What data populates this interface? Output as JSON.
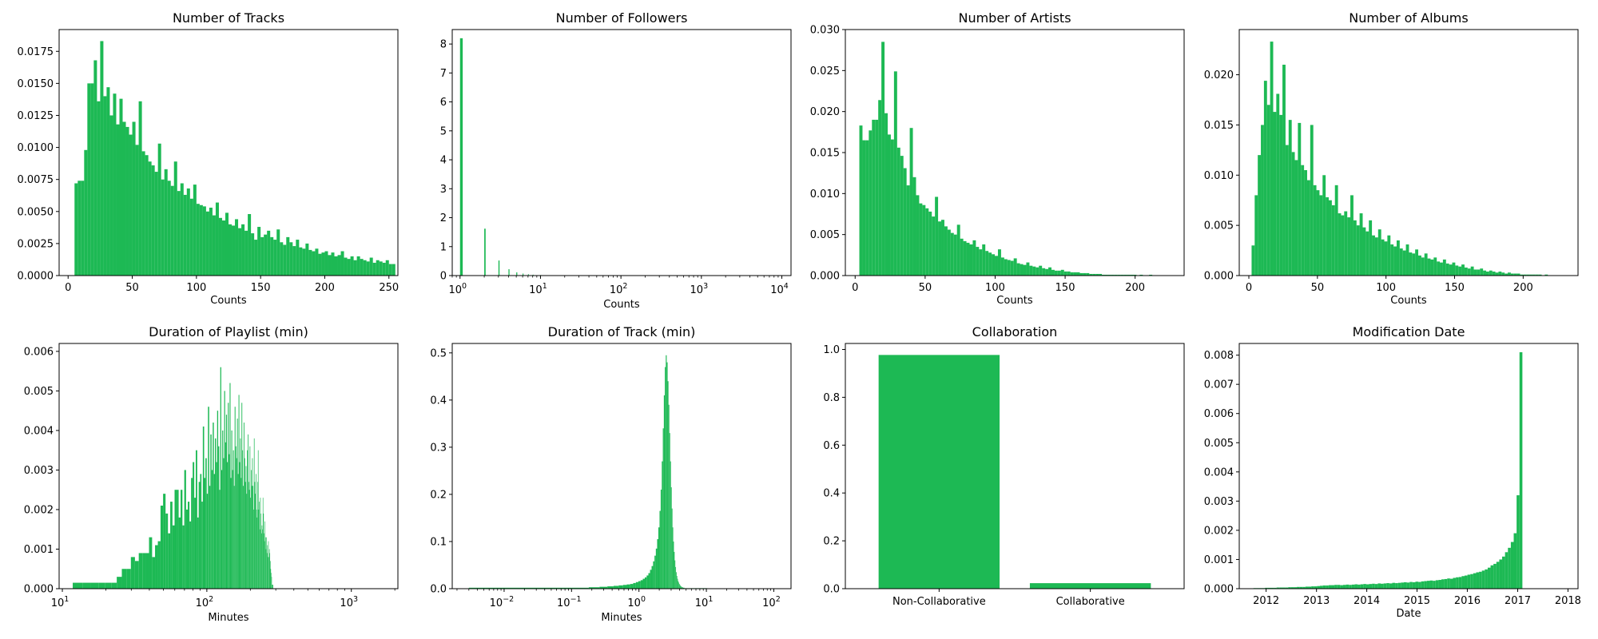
{
  "bar_color": "#1db954",
  "chart_data": [
    {
      "type": "bar",
      "title": "Number of Tracks",
      "xlabel": "Counts",
      "xscale": "linear",
      "xlim": [
        -7,
        257
      ],
      "ylim": [
        0,
        0.0192
      ],
      "xticks": [
        0,
        50,
        100,
        150,
        200,
        250
      ],
      "yticks": [
        0,
        0.0025,
        0.005,
        0.0075,
        0.01,
        0.0125,
        0.015,
        0.0175
      ],
      "ytick_labels": [
        "0.0000",
        "0.0025",
        "0.0050",
        "0.0075",
        "0.0100",
        "0.0125",
        "0.0150",
        "0.0175"
      ],
      "bins": {
        "start": 5,
        "width": 2.5
      },
      "values": [
        0.0072,
        0.0074,
        0.0074,
        0.0098,
        0.015,
        0.015,
        0.0168,
        0.0136,
        0.0183,
        0.014,
        0.0147,
        0.0125,
        0.0142,
        0.0118,
        0.0138,
        0.012,
        0.0116,
        0.011,
        0.012,
        0.0102,
        0.0136,
        0.0097,
        0.0094,
        0.0089,
        0.0086,
        0.0081,
        0.0103,
        0.0075,
        0.0083,
        0.0074,
        0.007,
        0.0089,
        0.0066,
        0.0072,
        0.0063,
        0.0068,
        0.006,
        0.0071,
        0.0056,
        0.0055,
        0.0054,
        0.005,
        0.0053,
        0.0047,
        0.0057,
        0.0045,
        0.0043,
        0.0049,
        0.004,
        0.0039,
        0.0044,
        0.0037,
        0.004,
        0.0035,
        0.0048,
        0.0033,
        0.0028,
        0.0038,
        0.003,
        0.0032,
        0.0035,
        0.003,
        0.0028,
        0.0036,
        0.0026,
        0.0024,
        0.003,
        0.0026,
        0.0023,
        0.0028,
        0.0022,
        0.0021,
        0.0025,
        0.002,
        0.0019,
        0.0021,
        0.0017,
        0.0018,
        0.0019,
        0.0016,
        0.0018,
        0.0015,
        0.0016,
        0.0019,
        0.0014,
        0.0013,
        0.0015,
        0.0012,
        0.0015,
        0.0013,
        0.0012,
        0.0011,
        0.0014,
        0.001,
        0.0012,
        0.0011,
        0.001,
        0.0012,
        0.0009,
        0.0009
      ]
    },
    {
      "type": "bar",
      "title": "Number of Followers",
      "xlabel": "Counts",
      "xscale": "log",
      "xlim": [
        0.8,
        13000
      ],
      "ylim": [
        0,
        8.5
      ],
      "xticks": [
        1,
        10,
        100,
        1000,
        10000
      ],
      "xtick_labels": [
        [
          "10",
          "0"
        ],
        [
          "10",
          "1"
        ],
        [
          "10",
          "2"
        ],
        [
          "10",
          "3"
        ],
        [
          "10",
          "4"
        ]
      ],
      "yticks": [
        0,
        1,
        2,
        3,
        4,
        5,
        6,
        7,
        8
      ],
      "ytick_labels": [
        "0",
        "1",
        "2",
        "3",
        "4",
        "5",
        "6",
        "7",
        "8"
      ],
      "bar_x": [
        1,
        2,
        3,
        4,
        5,
        6,
        7,
        8,
        10,
        12
      ],
      "bar_widths": [
        0.08,
        0.08,
        0.1,
        0.12,
        0.15,
        0.15,
        0.15,
        0.2,
        0.2,
        0.3
      ],
      "values": [
        8.2,
        1.62,
        0.52,
        0.22,
        0.11,
        0.07,
        0.05,
        0.03,
        0.02,
        0.01
      ]
    },
    {
      "type": "bar",
      "title": "Number of Artists",
      "xlabel": "Counts",
      "xscale": "linear",
      "xlim": [
        -7,
        235
      ],
      "ylim": [
        0,
        0.03
      ],
      "xticks": [
        0,
        50,
        100,
        150,
        200
      ],
      "yticks": [
        0,
        0.005,
        0.01,
        0.015,
        0.02,
        0.025,
        0.03
      ],
      "ytick_labels": [
        "0.000",
        "0.005",
        "0.010",
        "0.015",
        "0.020",
        "0.025",
        "0.030"
      ],
      "bins": {
        "start": 3,
        "width": 2.25
      },
      "values": [
        0.0183,
        0.0165,
        0.0165,
        0.0177,
        0.019,
        0.019,
        0.0214,
        0.0285,
        0.0198,
        0.0172,
        0.0166,
        0.0249,
        0.0156,
        0.0146,
        0.0131,
        0.011,
        0.018,
        0.012,
        0.0098,
        0.0088,
        0.0086,
        0.0082,
        0.0078,
        0.0072,
        0.0096,
        0.0066,
        0.0068,
        0.006,
        0.0056,
        0.0052,
        0.005,
        0.0062,
        0.0045,
        0.0042,
        0.004,
        0.0038,
        0.0043,
        0.0035,
        0.0032,
        0.0038,
        0.003,
        0.0028,
        0.0026,
        0.0024,
        0.0032,
        0.0022,
        0.002,
        0.0019,
        0.0018,
        0.0021,
        0.0015,
        0.0014,
        0.0013,
        0.0016,
        0.0012,
        0.0011,
        0.001,
        0.0012,
        0.0009,
        0.0008,
        0.001,
        0.0007,
        0.0006,
        0.0006,
        0.0007,
        0.0005,
        0.0005,
        0.0004,
        0.0004,
        0.0004,
        0.0003,
        0.0003,
        0.0003,
        0.0002,
        0.0002,
        0.0002,
        0.0002,
        0.0001,
        0.0001,
        0.0001,
        0.0001,
        0.0001,
        0.0001,
        0.0001,
        0.0001,
        0.0001,
        0.0001,
        0.0001,
        0,
        0.0001,
        0,
        0,
        0.0001,
        0,
        0,
        0,
        0,
        0,
        0,
        0
      ]
    },
    {
      "type": "bar",
      "title": "Number of Albums",
      "xlabel": "Counts",
      "xscale": "linear",
      "xlim": [
        -7,
        240
      ],
      "ylim": [
        0,
        0.0245
      ],
      "xticks": [
        0,
        50,
        100,
        150,
        200
      ],
      "yticks": [
        0,
        0.005,
        0.01,
        0.015,
        0.02
      ],
      "ytick_labels": [
        "0.000",
        "0.005",
        "0.010",
        "0.015",
        "0.020"
      ],
      "bins": {
        "start": 2,
        "width": 2.25
      },
      "values": [
        0.003,
        0.008,
        0.012,
        0.015,
        0.0194,
        0.017,
        0.0233,
        0.0163,
        0.0181,
        0.016,
        0.021,
        0.013,
        0.0155,
        0.0123,
        0.0115,
        0.0152,
        0.011,
        0.0105,
        0.0095,
        0.015,
        0.009,
        0.0085,
        0.008,
        0.01,
        0.0078,
        0.0075,
        0.007,
        0.009,
        0.0062,
        0.006,
        0.0064,
        0.0058,
        0.008,
        0.0055,
        0.005,
        0.0062,
        0.0048,
        0.0044,
        0.0055,
        0.004,
        0.0038,
        0.0046,
        0.0036,
        0.0034,
        0.004,
        0.0031,
        0.0029,
        0.0035,
        0.0027,
        0.0025,
        0.0031,
        0.0023,
        0.0022,
        0.0026,
        0.002,
        0.0018,
        0.0022,
        0.0017,
        0.0016,
        0.0018,
        0.0014,
        0.0013,
        0.0016,
        0.0012,
        0.0011,
        0.0013,
        0.001,
        0.0009,
        0.0011,
        0.0008,
        0.0007,
        0.0009,
        0.0006,
        0.0006,
        0.0007,
        0.0005,
        0.0004,
        0.0005,
        0.0004,
        0.0003,
        0.0004,
        0.0003,
        0.0002,
        0.0003,
        0.0002,
        0.0002,
        0.0002,
        0.0001,
        0.0001,
        0.0001,
        0.0001,
        0.0001,
        0.0001,
        0.0001,
        0,
        0.0001,
        0,
        0,
        0,
        0
      ]
    },
    {
      "type": "bar",
      "title": "Duration of Playlist (min)",
      "xlabel": "Minutes",
      "xscale": "log",
      "xlim": [
        9.5,
        2100
      ],
      "ylim": [
        0,
        0.0062
      ],
      "xticks": [
        10,
        100,
        1000
      ],
      "xtick_labels": [
        [
          "10",
          "1"
        ],
        [
          "10",
          "2"
        ],
        [
          "10",
          "3"
        ]
      ],
      "yticks": [
        0,
        0.001,
        0.002,
        0.003,
        0.004,
        0.005,
        0.006
      ],
      "ytick_labels": [
        "0.000",
        "0.001",
        "0.002",
        "0.003",
        "0.004",
        "0.005",
        "0.006"
      ],
      "bins": {
        "start": 11.8,
        "width": 2.0
      },
      "values": [
        0.00015,
        0.00015,
        0.00015,
        0.00015,
        0.00015,
        0.00015,
        0.0003,
        0.0005,
        0.0005,
        0.0008,
        0.0007,
        0.0009,
        0.0009,
        0.0009,
        0.0013,
        0.0008,
        0.0011,
        0.0012,
        0.0021,
        0.0024,
        0.0019,
        0.0014,
        0.0022,
        0.0016,
        0.0025,
        0.0025,
        0.0018,
        0.0025,
        0.0016,
        0.003,
        0.002,
        0.0022,
        0.0017,
        0.0028,
        0.0032,
        0.0023,
        0.0035,
        0.0018,
        0.0027,
        0.0029,
        0.0022,
        0.0041,
        0.0028,
        0.0033,
        0.0024,
        0.0046,
        0.0026,
        0.0039,
        0.003,
        0.0042,
        0.0029,
        0.0038,
        0.0032,
        0.0045,
        0.0036,
        0.0025,
        0.0056,
        0.003,
        0.004,
        0.0033,
        0.005,
        0.0037,
        0.0044,
        0.0032,
        0.0047,
        0.0034,
        0.0052,
        0.0028,
        0.004,
        0.003,
        0.0035,
        0.0026,
        0.0046,
        0.0036,
        0.0033,
        0.0043,
        0.0029,
        0.0049,
        0.0032,
        0.0038,
        0.0028,
        0.0047,
        0.0035,
        0.0026,
        0.0042,
        0.0033,
        0.0027,
        0.0031,
        0.0024,
        0.0035,
        0.0039,
        0.0027,
        0.0025,
        0.0036,
        0.0023,
        0.003,
        0.0026,
        0.0033,
        0.0026,
        0.002,
        0.0038,
        0.0027,
        0.0024,
        0.0029,
        0.002,
        0.0018,
        0.0027,
        0.0035,
        0.002,
        0.0022,
        0.0015,
        0.0023,
        0.0019,
        0.0014,
        0.0016,
        0.0015,
        0.0023,
        0.0019,
        0.0014,
        0.0012,
        0.0017,
        0.0013,
        0.001,
        0.0013,
        0.0009,
        0.0011,
        0.0008,
        0.0012,
        0.0008,
        0.001,
        0.0009,
        0.0007,
        0.0005,
        0.0004,
        0.0003,
        0.0001,
        0.0001,
        0.0001,
        0,
        0,
        0,
        0,
        0,
        0,
        0,
        0,
        0,
        0,
        0
      ]
    },
    {
      "type": "bar",
      "title": "Duration of Track (min)",
      "xlabel": "Minutes",
      "xscale": "log",
      "xlim": [
        0.0017,
        180
      ],
      "ylim": [
        0,
        0.52
      ],
      "xticks": [
        0.01,
        0.1,
        1,
        10,
        100
      ],
      "xtick_labels": [
        [
          "10",
          "−2"
        ],
        [
          "10",
          "−1"
        ],
        [
          "10",
          "0"
        ],
        [
          "10",
          "1"
        ],
        [
          "10",
          "2"
        ]
      ],
      "yticks": [
        0,
        0.1,
        0.2,
        0.3,
        0.4,
        0.5
      ],
      "ytick_labels": [
        "0.0",
        "0.1",
        "0.2",
        "0.3",
        "0.4",
        "0.5"
      ],
      "bins": {
        "start": 0.1,
        "width": 0.08
      },
      "values": [
        0.002,
        0.003,
        0.004,
        0.005,
        0.006,
        0.007,
        0.008,
        0.009,
        0.01,
        0.012,
        0.014,
        0.016,
        0.018,
        0.021,
        0.024,
        0.028,
        0.033,
        0.04,
        0.048,
        0.058,
        0.07,
        0.085,
        0.105,
        0.13,
        0.165,
        0.21,
        0.27,
        0.34,
        0.41,
        0.47,
        0.495,
        0.48,
        0.44,
        0.39,
        0.33,
        0.27,
        0.215,
        0.17,
        0.13,
        0.1,
        0.078,
        0.06,
        0.046,
        0.035,
        0.027,
        0.021,
        0.016,
        0.013,
        0.01,
        0.008,
        0.006,
        0.005,
        0.004,
        0.003,
        0.003,
        0.002,
        0.002,
        0.002,
        0.001,
        0.001,
        0.001,
        0.001,
        0.001,
        0.001,
        0.001,
        0.001,
        0.001,
        0.001,
        0.001,
        0.001,
        0.001,
        0.001,
        0.001,
        0.001,
        0.001,
        0.001,
        0.001,
        0.001,
        0.001,
        0.001,
        0.001,
        0.001,
        0.001,
        0.001,
        0.001,
        0.001,
        0.001,
        0.001,
        0.001,
        0.001,
        0.001,
        0.001,
        0.001,
        0.001,
        0.001,
        0.001,
        0.001,
        0.001,
        0.001,
        0.001,
        0.001,
        0.001,
        0.001,
        0.001,
        0.001,
        0.001,
        0.001,
        0.001,
        0.001,
        0.001,
        0.001,
        0.001,
        0.001,
        0.001,
        0.001,
        0.001,
        0.001,
        0.001,
        0.001,
        0.001,
        0.001,
        0.001,
        0.001,
        0.001,
        0.001
      ],
      "low_tail": {
        "from": 0.003,
        "to": 0.1,
        "value": 0.002
      }
    },
    {
      "type": "bar",
      "title": "Collaboration",
      "xlabel": "",
      "xscale": "category",
      "categories": [
        "Non-Collaborative",
        "Collaborative"
      ],
      "values": [
        0.977,
        0.023
      ],
      "xlim": [
        -0.62,
        1.62
      ],
      "ylim": [
        0,
        1.025
      ],
      "yticks": [
        0,
        0.2,
        0.4,
        0.6,
        0.8,
        1.0
      ],
      "ytick_labels": [
        "0.0",
        "0.2",
        "0.4",
        "0.6",
        "0.8",
        "1.0"
      ],
      "bar_width": 0.8
    },
    {
      "type": "bar",
      "title": "Modification Date",
      "xlabel": "Date",
      "xscale": "date",
      "xlim": [
        "2011-06-20",
        "2018-03-15"
      ],
      "ylim": [
        0,
        0.0084
      ],
      "xticks": [
        "2012",
        "2013",
        "2014",
        "2015",
        "2016",
        "2017",
        "2018"
      ],
      "yticks": [
        0,
        0.001,
        0.002,
        0.003,
        0.004,
        0.005,
        0.006,
        0.007,
        0.008
      ],
      "ytick_labels": [
        "0.000",
        "0.001",
        "0.002",
        "0.003",
        "0.004",
        "0.005",
        "0.006",
        "0.007",
        "0.008"
      ],
      "bins": {
        "start": "2011-10-01",
        "width_days": 21
      },
      "values": [
        2e-05,
        2e-05,
        2e-05,
        2e-05,
        3e-05,
        3e-05,
        3e-05,
        3e-05,
        4e-05,
        4e-05,
        4e-05,
        4e-05,
        5e-05,
        5e-05,
        5e-05,
        6e-05,
        6e-05,
        6e-05,
        7e-05,
        7e-05,
        8e-05,
        8e-05,
        9e-05,
        0.0001,
        0.00011,
        0.00011,
        0.00012,
        0.00012,
        0.00013,
        0.00013,
        0.00012,
        0.00013,
        0.00014,
        0.00013,
        0.00014,
        0.00015,
        0.00014,
        0.00015,
        0.00016,
        0.00015,
        0.00016,
        0.00017,
        0.00016,
        0.00018,
        0.00017,
        0.00018,
        0.00019,
        0.00018,
        0.0002,
        0.00019,
        0.0002,
        0.00021,
        0.00022,
        0.00021,
        0.00023,
        0.00022,
        0.00024,
        0.00023,
        0.00025,
        0.00026,
        0.00027,
        0.00028,
        0.00027,
        0.00029,
        0.0003,
        0.00032,
        0.00033,
        0.00035,
        0.00034,
        0.00037,
        0.00039,
        0.0004,
        0.00043,
        0.00045,
        0.00048,
        0.0005,
        0.00053,
        0.00056,
        0.00058,
        0.00062,
        0.00066,
        0.00072,
        0.0008,
        0.00085,
        0.00092,
        0.001,
        0.0011,
        0.00125,
        0.0014,
        0.0016,
        0.0019,
        0.0032,
        0.0081
      ]
    }
  ]
}
